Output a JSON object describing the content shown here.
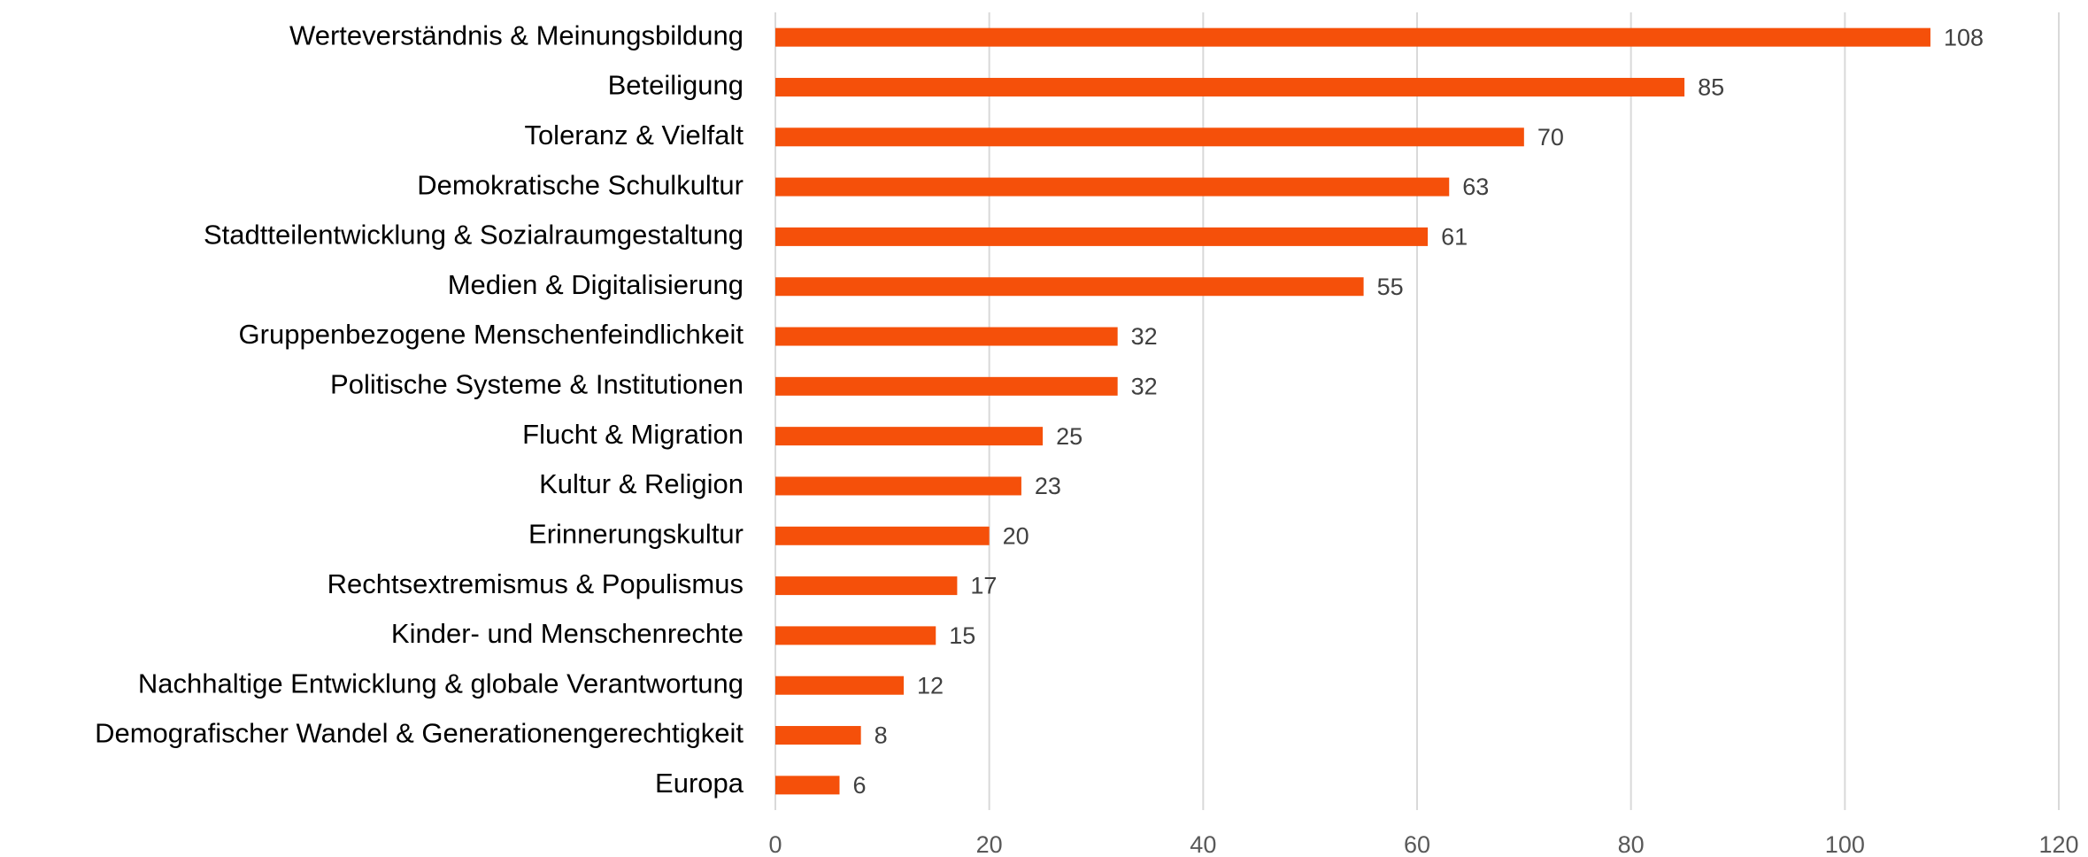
{
  "chart_data": {
    "type": "barh",
    "categories": [
      "Werteverständnis & Meinungsbildung",
      "Beteiligung",
      "Toleranz & Vielfalt",
      "Demokratische Schulkultur",
      "Stadtteilentwicklung & Sozialraumgestaltung",
      "Medien & Digitalisierung",
      "Gruppenbezogene Menschenfeindlichkeit",
      "Politische Systeme & Institutionen",
      "Flucht & Migration",
      "Kultur & Religion",
      "Erinnerungskultur",
      "Rechtsextremismus & Populismus",
      "Kinder- und Menschenrechte",
      "Nachhaltige Entwicklung & globale Verantwortung",
      "Demografischer Wandel & Generationengerechtigkeit",
      "Europa"
    ],
    "values": [
      108,
      85,
      70,
      63,
      61,
      55,
      32,
      32,
      25,
      23,
      20,
      17,
      15,
      12,
      8,
      6
    ],
    "color": "#f5500a",
    "xlim": [
      0,
      120
    ],
    "xticks": [
      0,
      20,
      40,
      60,
      80,
      100,
      120
    ],
    "grid": true
  }
}
